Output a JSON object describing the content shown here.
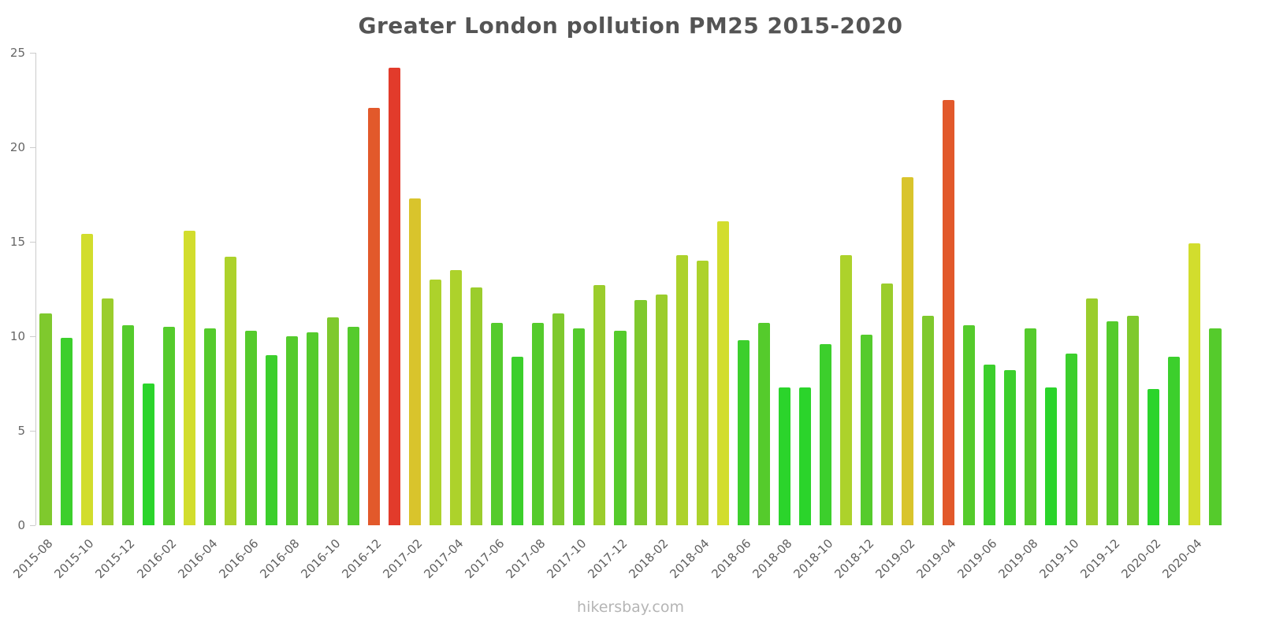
{
  "chart_data": {
    "type": "bar",
    "title": "Greater London pollution PM25 2015-2020",
    "footer": "hikersbay.com",
    "ylabel": "",
    "xlabel": "",
    "ylim": [
      0,
      25
    ],
    "y_ticks": [
      0,
      5,
      10,
      15,
      20,
      25
    ],
    "x_label_every": 2,
    "grid": false,
    "legend": "none",
    "x": [
      "2015-08",
      "2015-09",
      "2015-10",
      "2015-11",
      "2015-12",
      "2016-01",
      "2016-02",
      "2016-03",
      "2016-04",
      "2016-05",
      "2016-06",
      "2016-07",
      "2016-08",
      "2016-09",
      "2016-10",
      "2016-11",
      "2016-12",
      "2017-01",
      "2017-02",
      "2017-03",
      "2017-04",
      "2017-05",
      "2017-06",
      "2017-07",
      "2017-08",
      "2017-09",
      "2017-10",
      "2017-11",
      "2017-12",
      "2018-01",
      "2018-02",
      "2018-03",
      "2018-04",
      "2018-05",
      "2018-06",
      "2018-07",
      "2018-08",
      "2018-09",
      "2018-10",
      "2018-11",
      "2018-12",
      "2019-01",
      "2019-02",
      "2019-03",
      "2019-04",
      "2019-05",
      "2019-06",
      "2019-07",
      "2019-08",
      "2019-09",
      "2019-10",
      "2019-11",
      "2019-12",
      "2020-01",
      "2020-02",
      "2020-03",
      "2020-04",
      "2020-05"
    ],
    "values": [
      11.2,
      9.9,
      15.4,
      12.0,
      10.6,
      7.5,
      10.5,
      15.6,
      10.4,
      14.2,
      10.3,
      9.0,
      10.0,
      10.2,
      11.0,
      10.5,
      22.1,
      24.2,
      17.3,
      13.0,
      13.5,
      12.6,
      10.7,
      8.9,
      10.7,
      11.2,
      10.4,
      12.7,
      10.3,
      11.9,
      12.2,
      14.3,
      14.0,
      16.1,
      9.8,
      10.7,
      7.3,
      7.3,
      9.6,
      14.3,
      10.1,
      12.8,
      18.4,
      11.1,
      22.5,
      10.6,
      8.5,
      8.2,
      10.4,
      7.3,
      9.1,
      12.0,
      10.8,
      11.1,
      7.2,
      8.9,
      14.9,
      10.4
    ],
    "color_scale": [
      {
        "max": 8,
        "color": "#2bd42b"
      },
      {
        "max": 10,
        "color": "#3ccf2c"
      },
      {
        "max": 11,
        "color": "#55cb2c"
      },
      {
        "max": 12,
        "color": "#7fc92d"
      },
      {
        "max": 13,
        "color": "#9bcd2c"
      },
      {
        "max": 14.5,
        "color": "#add22b"
      },
      {
        "max": 16.5,
        "color": "#d2dd2d"
      },
      {
        "max": 20,
        "color": "#d9c42c"
      },
      {
        "max": 23,
        "color": "#e2592b"
      },
      {
        "max": 99,
        "color": "#e23b2b"
      }
    ],
    "axis_color": "#cccccc",
    "title_color": "#545454",
    "tick_label_color": "#666666",
    "footer_color": "#b5b5b5"
  }
}
